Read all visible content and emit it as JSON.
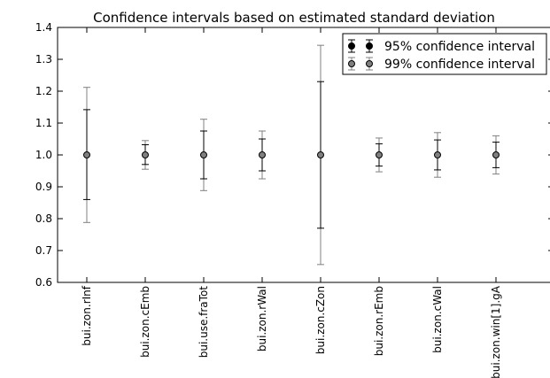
{
  "chart_data": {
    "type": "errorbar",
    "title": "Confidence intervals based on estimated standard deviation",
    "xlabel": "",
    "ylabel": "",
    "categories": [
      "bui.zon.rInf",
      "bui.zon.cEmb",
      "bui.use.fraTot",
      "bui.zon.rWal",
      "bui.zon.cZon",
      "bui.zon.rEmb",
      "bui.zon.cWal",
      "bui.zon.win[1].gA"
    ],
    "values": [
      1.0,
      1.0,
      1.0,
      1.0,
      1.0,
      1.0,
      1.0,
      1.0
    ],
    "ylim": [
      0.6,
      1.4
    ],
    "yticks": [
      "0.6",
      "0.7",
      "0.8",
      "0.9",
      "1.0",
      "1.1",
      "1.2",
      "1.3",
      "1.4"
    ],
    "series": [
      {
        "name": "95% confidence interval",
        "color": "#000000",
        "lower": [
          0.86,
          0.97,
          0.925,
          0.95,
          0.77,
          0.965,
          0.953,
          0.96
        ],
        "upper": [
          1.142,
          1.032,
          1.075,
          1.05,
          1.23,
          1.035,
          1.047,
          1.04
        ]
      },
      {
        "name": "99% confidence interval",
        "color": "#808080",
        "lower": [
          0.788,
          0.955,
          0.888,
          0.925,
          0.656,
          0.947,
          0.93,
          0.94
        ],
        "upper": [
          1.212,
          1.045,
          1.112,
          1.075,
          1.344,
          1.053,
          1.07,
          1.06
        ]
      }
    ],
    "grid": false,
    "legend": "top-right"
  }
}
